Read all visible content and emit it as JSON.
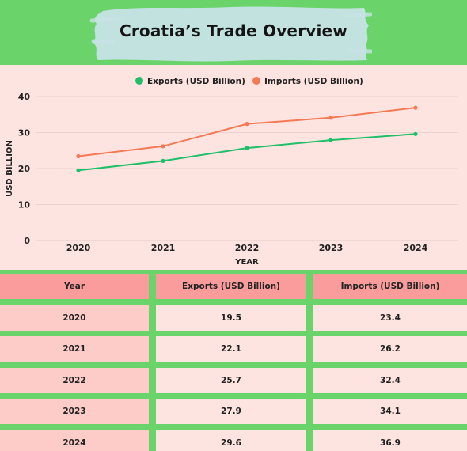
{
  "title": "Croatia’s Trade Overview",
  "colors": {
    "header_bg": "#6ad46a",
    "title_brush": "#c7e3e6",
    "exports": "#1fbf6a",
    "imports": "#f37a55",
    "page_bg": "#fde4e0",
    "table_header": "#fb9c9c",
    "year_cell": "#fdcbc8",
    "table_border": "#6ad46a"
  },
  "chart_data": {
    "type": "line",
    "title": "Croatia’s Trade Overview",
    "xlabel": "YEAR",
    "ylabel": "USD BILLION",
    "categories": [
      "2020",
      "2021",
      "2022",
      "2023",
      "2024"
    ],
    "ylim": [
      0,
      40
    ],
    "yticks": [
      "0",
      "10",
      "20",
      "30",
      "40"
    ],
    "grid": true,
    "legend_position": "top-center",
    "series": [
      {
        "name": "Exports (USD Billion)",
        "color": "#1fbf6a",
        "values": [
          19.5,
          22.1,
          25.7,
          27.9,
          29.6
        ]
      },
      {
        "name": "Imports (USD Billion)",
        "color": "#f37a55",
        "values": [
          23.4,
          26.2,
          32.4,
          34.1,
          36.9
        ]
      }
    ]
  },
  "table": {
    "headers": [
      "Year",
      "Exports (USD Billion)",
      "Imports (USD Billion)"
    ],
    "rows": [
      [
        "2020",
        "19.5",
        "23.4"
      ],
      [
        "2021",
        "22.1",
        "26.2"
      ],
      [
        "2022",
        "25.7",
        "32.4"
      ],
      [
        "2023",
        "27.9",
        "34.1"
      ],
      [
        "2024",
        "29.6",
        "36.9"
      ]
    ]
  }
}
